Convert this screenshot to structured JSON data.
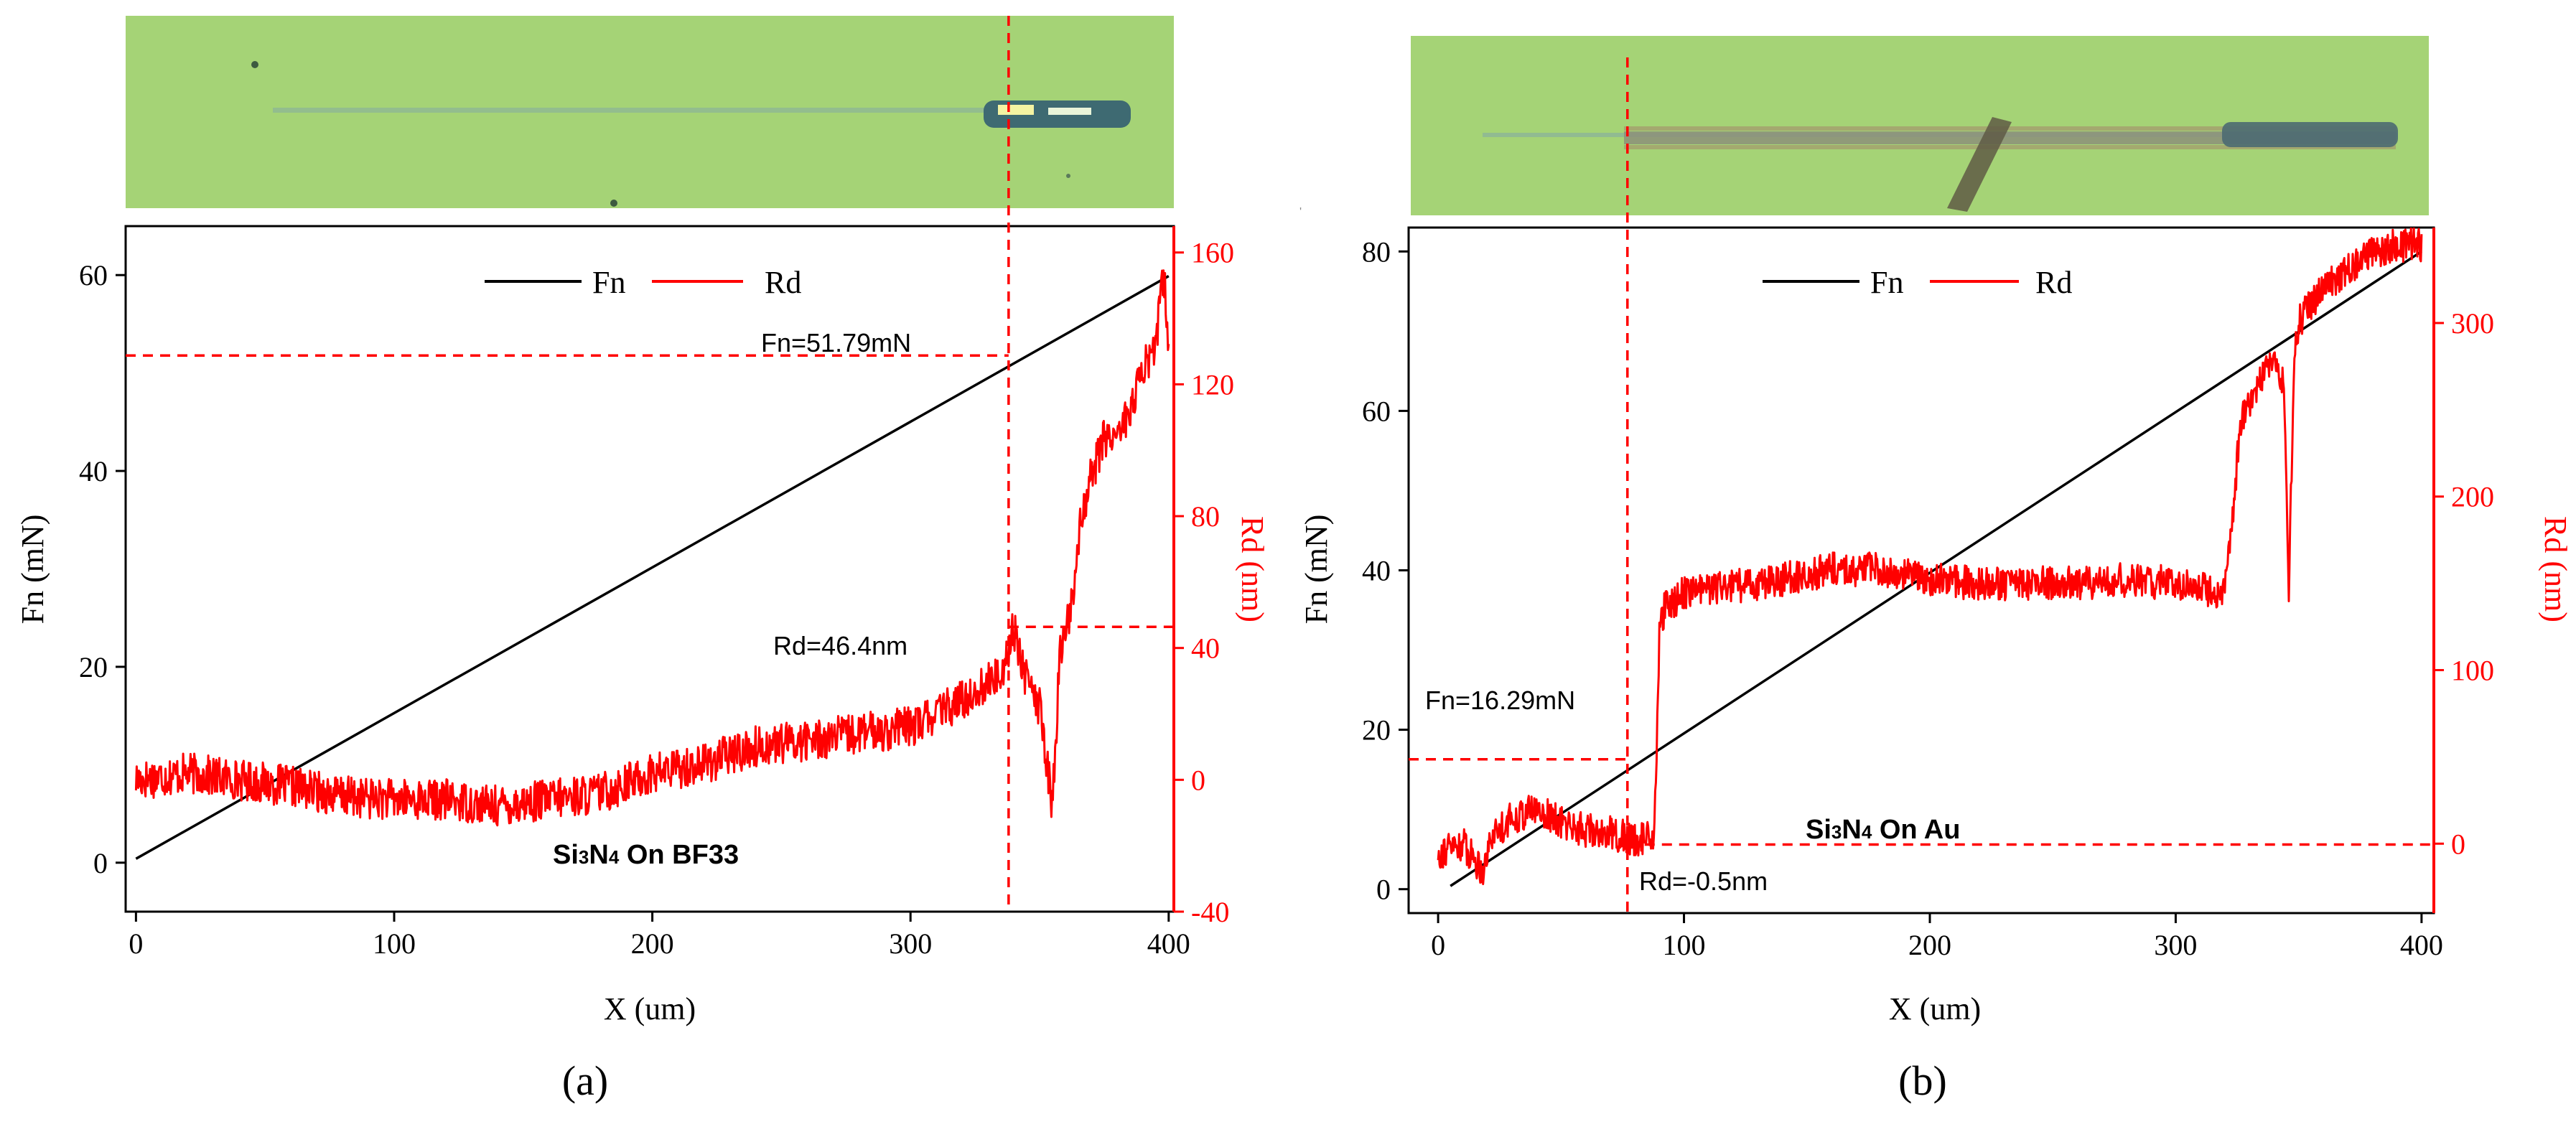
{
  "colors": {
    "fn_line": "#000000",
    "rd_line": "#ff0000",
    "axis": "#000000",
    "rd_axis": "#ff0000",
    "micrograph_bg": "#a7d576",
    "micrograph_streak": "#95b98b"
  },
  "chart_data": [
    {
      "type": "line",
      "panel_label": "(a)",
      "xlabel": "X (um)",
      "ylabel_left": "Fn (mN)",
      "ylabel_right": "Rd (nm)",
      "xlim": [
        -4,
        402
      ],
      "ylim_left": [
        -5,
        65
      ],
      "ylim_right": [
        -40,
        168
      ],
      "xticks": [
        0,
        100,
        200,
        300,
        400
      ],
      "yticks_left": [
        0,
        20,
        40,
        60
      ],
      "yticks_right": [
        -40,
        0,
        40,
        80,
        120,
        160
      ],
      "legend": [
        "Fn",
        "Rd"
      ],
      "legend_position": "top-center",
      "sample_label": {
        "text_a": "Si",
        "sub_a": "3",
        "text_b": "N",
        "sub_b": "4",
        "text_c": " On BF33"
      },
      "annotations": {
        "fn": "Fn=51.79mN",
        "rd": "Rd=46.4nm"
      },
      "critical_x": 338,
      "fn_critical": 51.79,
      "rd_critical": 46.4,
      "series": [
        {
          "name": "Fn",
          "axis": "left",
          "x": [
            0,
            400
          ],
          "values": [
            0.4,
            59.9
          ]
        },
        {
          "name": "Rd",
          "axis": "right",
          "x": [
            0,
            20,
            40,
            60,
            80,
            100,
            120,
            140,
            160,
            180,
            200,
            220,
            240,
            260,
            280,
            300,
            320,
            335,
            340,
            345,
            350,
            355,
            358,
            362,
            366,
            370,
            375,
            380,
            385,
            390,
            395,
            398,
            400
          ],
          "values": [
            0,
            2,
            0,
            -2,
            -5,
            -6,
            -6,
            -8,
            -6,
            -4,
            2,
            5,
            10,
            12,
            14,
            16,
            24,
            32,
            46,
            30,
            22,
            -8,
            40,
            50,
            80,
            92,
            104,
            105,
            112,
            124,
            132,
            155,
            130
          ],
          "noise_amplitude": 6
        }
      ]
    },
    {
      "type": "line",
      "panel_label": "(b)",
      "xlabel": "X (um)",
      "ylabel_left": "Fn (mN)",
      "ylabel_right": "Rd (nm)",
      "xlim": [
        -12,
        405
      ],
      "ylim_left": [
        -3,
        83
      ],
      "ylim_right": [
        -40,
        355
      ],
      "xticks": [
        0,
        100,
        200,
        300,
        400
      ],
      "yticks_left": [
        0,
        20,
        40,
        60,
        80
      ],
      "yticks_right": [
        0,
        100,
        200,
        300
      ],
      "legend": [
        "Fn",
        "Rd"
      ],
      "legend_position": "top-center",
      "sample_label": {
        "text_a": "Si",
        "sub_a": "3",
        "text_b": "N",
        "sub_b": "4",
        "text_c": " On Au"
      },
      "annotations": {
        "fn": "Fn=16.29mN",
        "rd": "Rd=-0.5nm"
      },
      "critical_x": 77,
      "fn_critical": 16.29,
      "rd_critical": -0.5,
      "series": [
        {
          "name": "Fn",
          "axis": "left",
          "x": [
            5,
            400
          ],
          "values": [
            0.4,
            80
          ]
        },
        {
          "name": "Rd",
          "axis": "right",
          "x": [
            0,
            10,
            18,
            22,
            30,
            40,
            50,
            60,
            70,
            80,
            88,
            90,
            92,
            100,
            120,
            140,
            160,
            180,
            200,
            220,
            240,
            260,
            280,
            300,
            320,
            324,
            326,
            330,
            335,
            340,
            344,
            346,
            348,
            350,
            355,
            360,
            370,
            380,
            390,
            400
          ],
          "values": [
            -5,
            0,
            -15,
            5,
            15,
            20,
            12,
            8,
            6,
            2,
            5,
            120,
            135,
            145,
            148,
            152,
            158,
            158,
            152,
            150,
            150,
            150,
            152,
            150,
            145,
            200,
            240,
            255,
            270,
            280,
            265,
            140,
            275,
            300,
            312,
            320,
            330,
            340,
            345,
            345
          ],
          "noise_amplitude": 5
        }
      ]
    }
  ]
}
